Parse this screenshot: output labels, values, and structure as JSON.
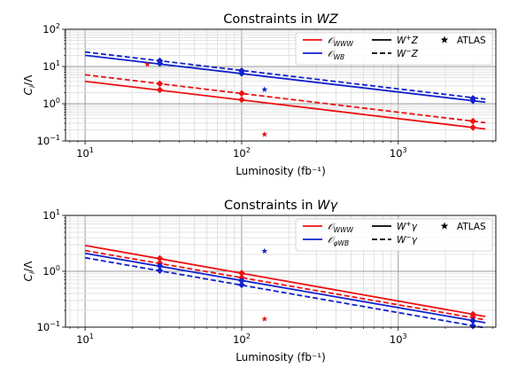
{
  "chart_data": [
    {
      "type": "line",
      "title": "Constraints in WZ",
      "xlabel": "Luminosity (fb⁻¹)",
      "ylabel": "C_i/Λ",
      "xscale": "log",
      "yscale": "log",
      "xlim": [
        7.5,
        4200
      ],
      "ylim": [
        0.1,
        100
      ],
      "x_ticks": [
        "10¹",
        "10²",
        "10³"
      ],
      "y_ticks": [
        "10⁻¹",
        "10⁰",
        "10¹",
        "10²"
      ],
      "grid": true,
      "legend_position": "top-right",
      "legend": [
        {
          "label": "O_WWW",
          "color": "#ee1111",
          "style": "solid"
        },
        {
          "label": "O_WB",
          "color": "#1122cc",
          "style": "solid"
        },
        {
          "label": "W⁺Z",
          "color": "#000000",
          "style": "solid"
        },
        {
          "label": "W⁻Z",
          "color": "#000000",
          "style": "dashed"
        },
        {
          "label": "ATLAS",
          "color": "#000000",
          "style": "star"
        }
      ],
      "series": [
        {
          "operator": "O_WWW",
          "channel": "W⁺Z",
          "color": "#ee1111",
          "dash": false,
          "x": [
            10,
            3600
          ],
          "y": [
            4.0,
            0.21
          ],
          "markers": {
            "x": [
              30,
              100,
              3000
            ],
            "y": [
              2.35,
              1.28,
              0.23
            ]
          }
        },
        {
          "operator": "O_WWW",
          "channel": "W⁻Z",
          "color": "#ee1111",
          "dash": true,
          "x": [
            10,
            3600
          ],
          "y": [
            6.0,
            0.31
          ],
          "markers": {
            "x": [
              30,
              100,
              3000
            ],
            "y": [
              3.45,
              1.9,
              0.34
            ]
          }
        },
        {
          "operator": "O_WB",
          "channel": "W⁺Z",
          "color": "#1122cc",
          "dash": false,
          "x": [
            10,
            3600
          ],
          "y": [
            20.0,
            1.1
          ],
          "markers": {
            "x": [
              30,
              100,
              3000
            ],
            "y": [
              12.0,
              6.5,
              1.2
            ]
          }
        },
        {
          "operator": "O_WB",
          "channel": "W⁻Z",
          "color": "#1122cc",
          "dash": true,
          "x": [
            10,
            3600
          ],
          "y": [
            24.5,
            1.33
          ],
          "markers": {
            "x": [
              30,
              100,
              3000
            ],
            "y": [
              14.2,
              7.7,
              1.4
            ]
          }
        }
      ],
      "atlas_points": [
        {
          "operator": "O_WWW",
          "color": "#ee1111",
          "x": 25,
          "y": 11.5
        },
        {
          "operator": "O_WWW",
          "color": "#ee1111",
          "x": 140,
          "y": 0.15
        },
        {
          "operator": "O_WB",
          "color": "#1122cc",
          "x": 140,
          "y": 2.4
        }
      ]
    },
    {
      "type": "line",
      "title": "Constraints in Wγ",
      "xlabel": "Luminosity (fb⁻¹)",
      "ylabel": "C_i/Λ",
      "xscale": "log",
      "yscale": "log",
      "xlim": [
        7.5,
        4200
      ],
      "ylim": [
        0.1,
        10
      ],
      "x_ticks": [
        "10¹",
        "10²",
        "10³"
      ],
      "y_ticks": [
        "10⁻¹",
        "10⁰",
        "10¹"
      ],
      "grid": true,
      "legend_position": "top-right",
      "legend": [
        {
          "label": "O_WWW",
          "color": "#ee1111",
          "style": "solid"
        },
        {
          "label": "O_φWB",
          "color": "#1122cc",
          "style": "solid"
        },
        {
          "label": "W⁺γ",
          "color": "#000000",
          "style": "solid"
        },
        {
          "label": "W⁻γ",
          "color": "#000000",
          "style": "dashed"
        },
        {
          "label": "ATLAS",
          "color": "#000000",
          "style": "star"
        }
      ],
      "series": [
        {
          "operator": "O_WWW",
          "channel": "W⁺γ",
          "color": "#ee1111",
          "dash": false,
          "x": [
            10,
            3600
          ],
          "y": [
            2.9,
            0.155
          ],
          "markers": {
            "x": [
              30,
              100,
              3000
            ],
            "y": [
              1.7,
              0.93,
              0.17
            ]
          }
        },
        {
          "operator": "O_WWW",
          "channel": "W⁻γ",
          "color": "#ee1111",
          "dash": true,
          "x": [
            10,
            3600
          ],
          "y": [
            2.35,
            0.135
          ],
          "markers": {
            "x": [
              30,
              100,
              3000
            ],
            "y": [
              1.4,
              0.77,
              0.15
            ]
          }
        },
        {
          "operator": "O_φWB",
          "channel": "W⁺γ",
          "color": "#1122cc",
          "dash": false,
          "x": [
            10,
            3600
          ],
          "y": [
            2.1,
            0.12
          ],
          "markers": {
            "x": [
              30,
              100,
              3000
            ],
            "y": [
              1.25,
              0.68,
              0.13
            ]
          }
        },
        {
          "operator": "O_φWB",
          "channel": "W⁻γ",
          "color": "#1122cc",
          "dash": true,
          "x": [
            10,
            3600
          ],
          "y": [
            1.75,
            0.097
          ],
          "markers": {
            "x": [
              30,
              100,
              3000
            ],
            "y": [
              1.03,
              0.57,
              0.105
            ]
          }
        }
      ],
      "atlas_points": [
        {
          "operator": "O_WWW",
          "color": "#ee1111",
          "x": 140,
          "y": 0.14
        },
        {
          "operator": "O_φWB",
          "color": "#1122cc",
          "x": 140,
          "y": 2.3
        }
      ]
    }
  ]
}
